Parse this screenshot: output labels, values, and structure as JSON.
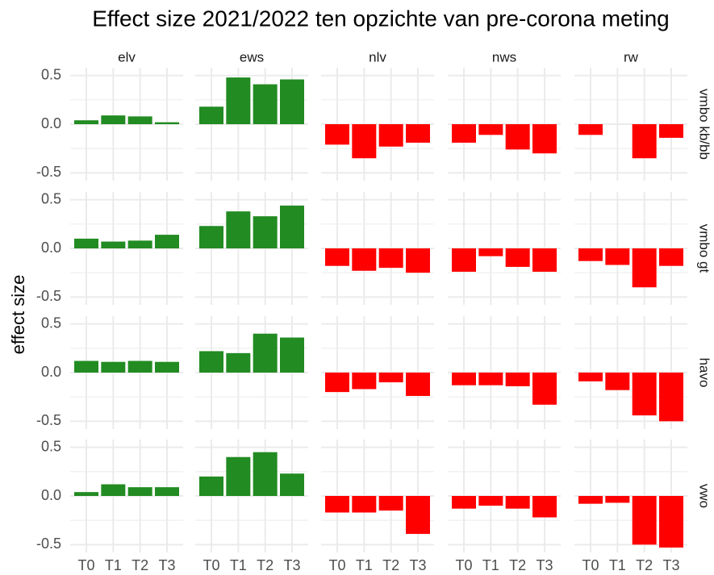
{
  "chart_data": {
    "type": "bar",
    "title": "Effect size 2021/2022 ten opzichte van pre-corona meting",
    "ylabel": "effect size",
    "columns": [
      "elv",
      "ews",
      "nlv",
      "nws",
      "rw"
    ],
    "rows": [
      "vmbo kb/bb",
      "vmbo gt",
      "havo",
      "vwo"
    ],
    "categories": [
      "T0",
      "T1",
      "T2",
      "T3"
    ],
    "panels": [
      [
        [
          0.04,
          0.09,
          0.08,
          0.02
        ],
        [
          0.18,
          0.48,
          0.41,
          0.46
        ],
        [
          -0.21,
          -0.35,
          -0.23,
          -0.19
        ],
        [
          -0.19,
          -0.11,
          -0.26,
          -0.3
        ],
        [
          -0.11,
          null,
          -0.35,
          -0.14
        ]
      ],
      [
        [
          0.1,
          0.07,
          0.08,
          0.14
        ],
        [
          0.23,
          0.38,
          0.33,
          0.44
        ],
        [
          -0.18,
          -0.23,
          -0.2,
          -0.25
        ],
        [
          -0.24,
          -0.08,
          -0.19,
          -0.24
        ],
        [
          -0.13,
          -0.17,
          -0.4,
          -0.18
        ]
      ],
      [
        [
          0.12,
          0.11,
          0.12,
          0.11
        ],
        [
          0.22,
          0.2,
          0.4,
          0.36
        ],
        [
          -0.2,
          -0.17,
          -0.1,
          -0.24
        ],
        [
          -0.13,
          -0.13,
          -0.14,
          -0.33
        ],
        [
          -0.09,
          -0.18,
          -0.44,
          -0.5
        ]
      ],
      [
        [
          0.04,
          0.12,
          0.09,
          0.09
        ],
        [
          0.2,
          0.4,
          0.45,
          0.23
        ],
        [
          -0.17,
          -0.17,
          -0.15,
          -0.39
        ],
        [
          -0.13,
          -0.1,
          -0.13,
          -0.22
        ],
        [
          -0.08,
          -0.07,
          -0.5,
          -0.53
        ]
      ]
    ],
    "colors": {
      "positive": "#228b22",
      "negative": "#ff0000"
    },
    "ylim": [
      -0.58,
      0.58
    ],
    "yticks": [
      {
        "value": -0.5,
        "label": "-0.5"
      },
      {
        "value": 0,
        "label": "0.0"
      },
      {
        "value": 0.5,
        "label": "0.5"
      }
    ],
    "yminor": [
      -0.25,
      0.25
    ],
    "grid": true
  }
}
